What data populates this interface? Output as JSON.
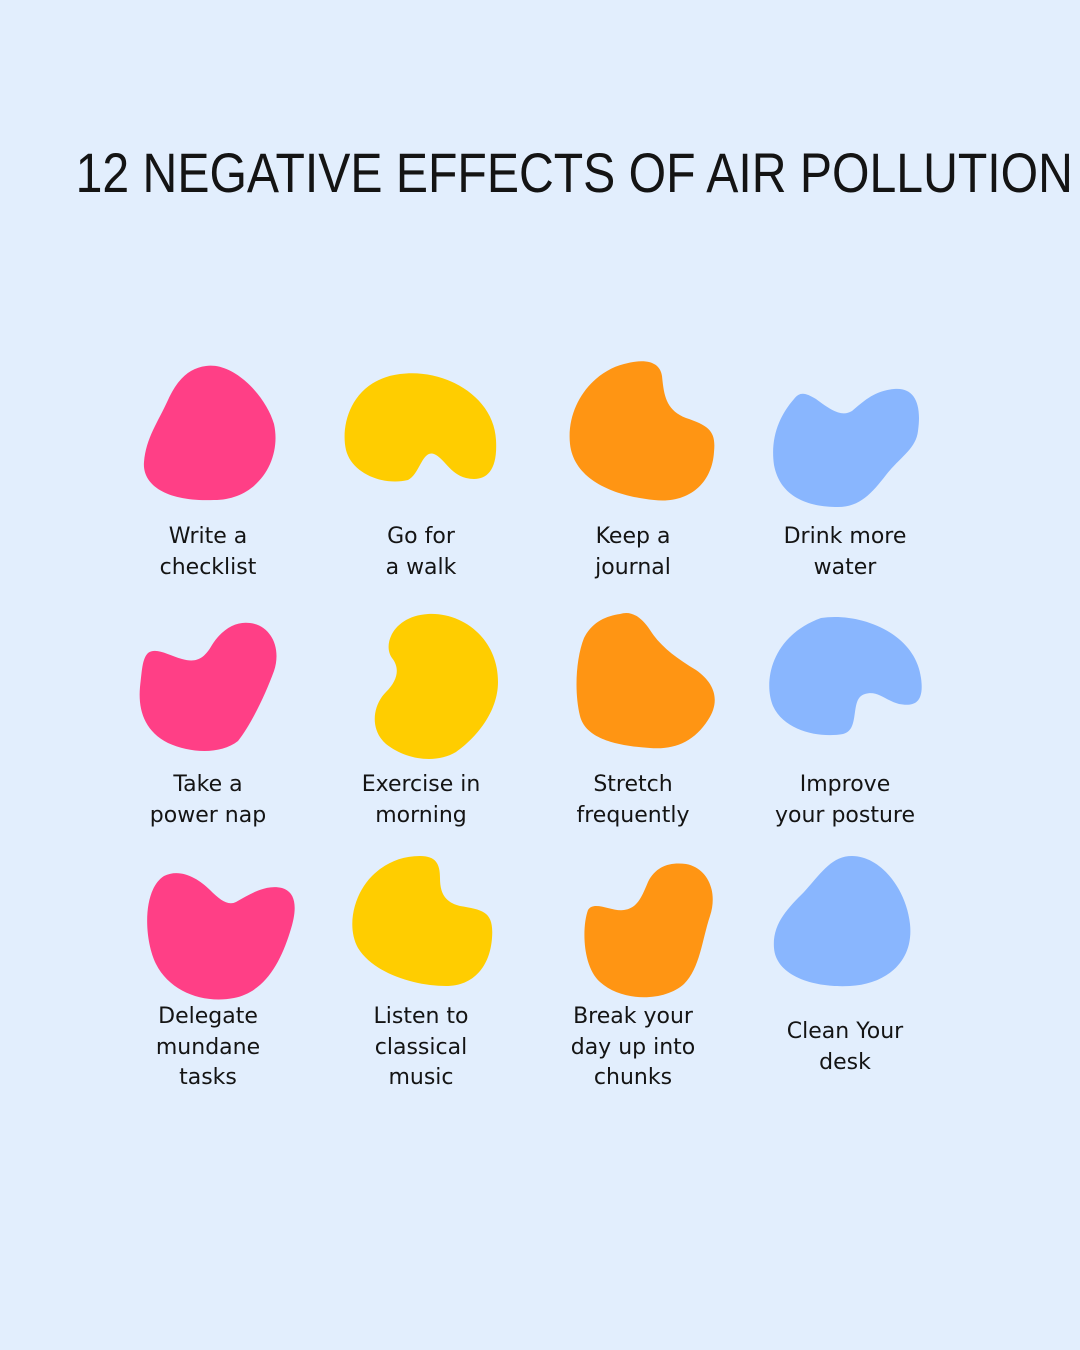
{
  "title": "12 NEGATIVE EFFECTS OF AIR POLLUTION",
  "colors": {
    "background": "#e2eefd",
    "pink": "#ff3f86",
    "yellow": "#ffcd00",
    "orange": "#ff9513",
    "blue": "#89b6fe"
  },
  "items": [
    {
      "line1": "Write a",
      "line2": "checklist",
      "color": "pink"
    },
    {
      "line1": "Go for",
      "line2": "a walk",
      "color": "yellow"
    },
    {
      "line1": "Keep a",
      "line2": "journal",
      "color": "orange"
    },
    {
      "line1": "Drink more",
      "line2": "water",
      "color": "blue"
    },
    {
      "line1": "Take a",
      "line2": "power nap",
      "color": "pink"
    },
    {
      "line1": "Exercise in",
      "line2": "morning",
      "color": "yellow"
    },
    {
      "line1": "Stretch",
      "line2": "frequently",
      "color": "orange"
    },
    {
      "line1": "Improve",
      "line2": "your posture",
      "color": "blue"
    },
    {
      "line1": "Delegate",
      "line2": "mundane",
      "line3": "tasks",
      "color": "pink"
    },
    {
      "line1": "Listen to",
      "line2": "classical",
      "line3": "music",
      "color": "yellow"
    },
    {
      "line1": "Break your",
      "line2": "day up into",
      "line3": "chunks",
      "color": "orange"
    },
    {
      "line1": "Clean Your",
      "line2": "desk",
      "color": "blue"
    }
  ]
}
